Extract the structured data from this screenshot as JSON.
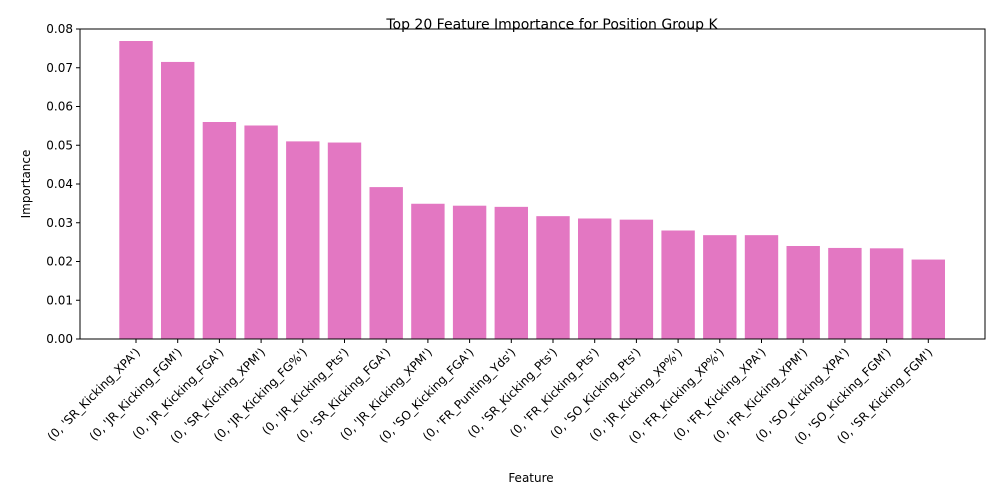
{
  "chart_data": {
    "type": "bar",
    "title": "Top 20 Feature Importance for Position Group K",
    "xlabel": "Feature",
    "ylabel": "Importance",
    "ylim": [
      0,
      0.08
    ],
    "yticks": [
      "0.00",
      "0.01",
      "0.02",
      "0.03",
      "0.04",
      "0.05",
      "0.06",
      "0.07",
      "0.08"
    ],
    "grid": false,
    "bar_color": "#e377c2",
    "categories": [
      "(0, 'SR_Kicking_XPA')",
      "(0, 'JR_Kicking_FGM')",
      "(0, 'JR_Kicking_FGA')",
      "(0, 'SR_Kicking_XPM')",
      "(0, 'JR_Kicking_FG%')",
      "(0, 'JR_Kicking_Pts')",
      "(0, 'SR_Kicking_FGA')",
      "(0, 'JR_Kicking_XPM')",
      "(0, 'SO_Kicking_FGA')",
      "(0, 'FR_Punting_Yds')",
      "(0, 'SR_Kicking_Pts')",
      "(0, 'FR_Kicking_Pts')",
      "(0, 'SO_Kicking_Pts')",
      "(0, 'JR_Kicking_XP%')",
      "(0, 'FR_Kicking_XP%')",
      "(0, 'FR_Kicking_XPA')",
      "(0, 'FR_Kicking_XPM')",
      "(0, 'SO_Kicking_XPA')",
      "(0, 'SO_Kicking_FGM')",
      "(0, 'SR_Kicking_FGM')"
    ],
    "values": [
      0.0769,
      0.0715,
      0.056,
      0.0551,
      0.051,
      0.0507,
      0.0392,
      0.0349,
      0.0344,
      0.0341,
      0.0317,
      0.0311,
      0.0308,
      0.028,
      0.0268,
      0.0268,
      0.024,
      0.0235,
      0.0234,
      0.0205
    ]
  }
}
